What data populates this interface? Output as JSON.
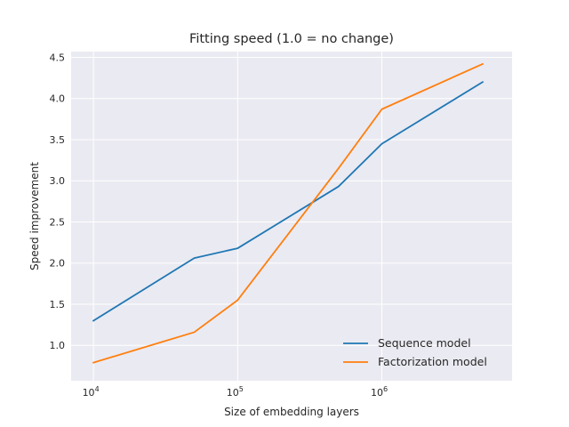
{
  "chart_data": {
    "type": "line",
    "title": "Fitting speed (1.0 = no change)",
    "xlabel": "Size of embedding layers",
    "ylabel": "Speed improvement",
    "xscale": "log",
    "xlim": [
      7000,
      8000000
    ],
    "ylim": [
      0.57,
      4.57
    ],
    "x_ticks": [
      {
        "value": 10000,
        "base": "10",
        "exp": "4"
      },
      {
        "value": 100000,
        "base": "10",
        "exp": "5"
      },
      {
        "value": 1000000,
        "base": "10",
        "exp": "6"
      }
    ],
    "y_ticks": [
      1.0,
      1.5,
      2.0,
      2.5,
      3.0,
      3.5,
      4.0,
      4.5
    ],
    "y_tick_labels": [
      "1.0",
      "1.5",
      "2.0",
      "2.5",
      "3.0",
      "3.5",
      "4.0",
      "4.5"
    ],
    "grid": true,
    "legend_position": "lower-right",
    "series": [
      {
        "name": "Sequence model",
        "color": "#1f77b4",
        "x": [
          10000,
          50000,
          100000,
          500000,
          1000000,
          5000000
        ],
        "y": [
          1.3,
          2.06,
          2.18,
          2.93,
          3.45,
          4.2
        ]
      },
      {
        "name": "Factorization model",
        "color": "#ff7f0e",
        "x": [
          10000,
          50000,
          100000,
          500000,
          1000000,
          5000000
        ],
        "y": [
          0.79,
          1.16,
          1.55,
          3.15,
          3.87,
          4.42
        ]
      }
    ]
  },
  "colors": {
    "plot_background": "#eaeaf2",
    "grid": "#ffffff",
    "text": "#262626"
  }
}
